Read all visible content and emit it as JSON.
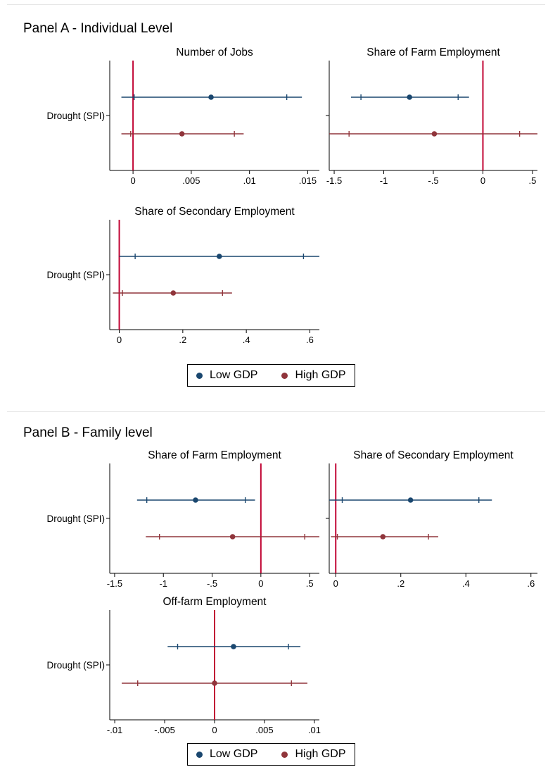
{
  "panels": [
    {
      "title": "Panel A - Individual Level",
      "legend": [
        {
          "label": "Low GDP",
          "color": "#1a476f"
        },
        {
          "label": "High GDP",
          "color": "#90353b"
        }
      ]
    },
    {
      "title": "Panel B - Family level",
      "legend": [
        {
          "label": "Low GDP",
          "color": "#1a476f"
        },
        {
          "label": "High GDP",
          "color": "#90353b"
        }
      ]
    }
  ],
  "colors": {
    "low_gdp": "#1a476f",
    "high_gdp": "#90353b",
    "zero_line": "#c10534"
  },
  "chart_data": [
    {
      "panel": "Panel A - Individual Level",
      "type": "scatter",
      "title": "Number of Jobs",
      "y_category": "Drought (SPI)",
      "show_y_label": true,
      "xlim": [
        -0.002,
        0.016
      ],
      "x_ticks": [
        0,
        0.005,
        0.01,
        0.015
      ],
      "x_tick_labels": [
        "0",
        ".005",
        ".01",
        ".015"
      ],
      "reference_line": 0,
      "series": [
        {
          "name": "Low GDP",
          "estimate": 0.0067,
          "ci95": [
            -0.001,
            0.0145
          ],
          "ci90": [
            0.0001,
            0.0132
          ]
        },
        {
          "name": "High GDP",
          "estimate": 0.0042,
          "ci95": [
            -0.001,
            0.0095
          ],
          "ci90": [
            -0.0002,
            0.0087
          ]
        }
      ]
    },
    {
      "panel": "Panel A - Individual Level",
      "type": "scatter",
      "title": "Share of Farm Employment",
      "y_category": "Drought (SPI)",
      "show_y_label": false,
      "xlim": [
        -1.55,
        0.55
      ],
      "x_ticks": [
        -1.5,
        -1,
        -0.5,
        0,
        0.5
      ],
      "x_tick_labels": [
        "-1.5",
        "-1",
        "-.5",
        "0",
        ".5"
      ],
      "reference_line": 0,
      "series": [
        {
          "name": "Low GDP",
          "estimate": -0.74,
          "ci95": [
            -1.33,
            -0.14
          ],
          "ci90": [
            -1.23,
            -0.25
          ]
        },
        {
          "name": "High GDP",
          "estimate": -0.49,
          "ci95": [
            -1.55,
            0.55
          ],
          "ci90": [
            -1.35,
            0.37
          ]
        }
      ]
    },
    {
      "panel": "Panel A - Individual Level",
      "type": "scatter",
      "title": "Share of Secondary Employment",
      "y_category": "Drought (SPI)",
      "show_y_label": true,
      "xlim": [
        -0.03,
        0.63
      ],
      "x_ticks": [
        0,
        0.2,
        0.4,
        0.6
      ],
      "x_tick_labels": [
        "0",
        ".2",
        ".4",
        ".6"
      ],
      "reference_line": 0,
      "series": [
        {
          "name": "Low GDP",
          "estimate": 0.315,
          "ci95": [
            0.0,
            0.63
          ],
          "ci90": [
            0.05,
            0.58
          ]
        },
        {
          "name": "High GDP",
          "estimate": 0.17,
          "ci95": [
            -0.02,
            0.355
          ],
          "ci90": [
            0.01,
            0.325
          ]
        }
      ]
    },
    {
      "panel": "Panel B - Family level",
      "type": "scatter",
      "title": "Share of Farm Employment",
      "y_category": "Drought (SPI)",
      "show_y_label": true,
      "xlim": [
        -1.55,
        0.6
      ],
      "x_ticks": [
        -1.5,
        -1,
        -0.5,
        0,
        0.5
      ],
      "x_tick_labels": [
        "-1.5",
        "-1",
        "-.5",
        "0",
        ".5"
      ],
      "reference_line": 0,
      "series": [
        {
          "name": "Low GDP",
          "estimate": -0.67,
          "ci95": [
            -1.27,
            -0.06
          ],
          "ci90": [
            -1.17,
            -0.16
          ]
        },
        {
          "name": "High GDP",
          "estimate": -0.29,
          "ci95": [
            -1.18,
            0.6
          ],
          "ci90": [
            -1.04,
            0.45
          ]
        }
      ]
    },
    {
      "panel": "Panel B - Family level",
      "type": "scatter",
      "title": "Share of Secondary Employment",
      "y_category": "Drought (SPI)",
      "show_y_label": false,
      "xlim": [
        -0.02,
        0.62
      ],
      "x_ticks": [
        0,
        0.2,
        0.4,
        0.6
      ],
      "x_tick_labels": [
        "0",
        ".2",
        ".4",
        ".6"
      ],
      "reference_line": 0,
      "series": [
        {
          "name": "Low GDP",
          "estimate": 0.23,
          "ci95": [
            -0.02,
            0.48
          ],
          "ci90": [
            0.02,
            0.44
          ]
        },
        {
          "name": "High GDP",
          "estimate": 0.145,
          "ci95": [
            -0.015,
            0.315
          ],
          "ci90": [
            0.005,
            0.285
          ]
        }
      ]
    },
    {
      "panel": "Panel B - Family level",
      "type": "scatter",
      "title": "Off-farm Employment",
      "y_category": "Drought (SPI)",
      "show_y_label": true,
      "xlim": [
        -0.0105,
        0.0105
      ],
      "x_ticks": [
        -0.01,
        -0.005,
        0,
        0.005,
        0.01
      ],
      "x_tick_labels": [
        "-.01",
        "-.005",
        "0",
        ".005",
        ".01"
      ],
      "reference_line": 0,
      "series": [
        {
          "name": "Low GDP",
          "estimate": 0.0019,
          "ci95": [
            -0.0047,
            0.0086
          ],
          "ci90": [
            -0.0037,
            0.0074
          ]
        },
        {
          "name": "High GDP",
          "estimate": 0.0,
          "ci95": [
            -0.0093,
            0.0093
          ],
          "ci90": [
            -0.0077,
            0.0077
          ]
        }
      ]
    }
  ]
}
